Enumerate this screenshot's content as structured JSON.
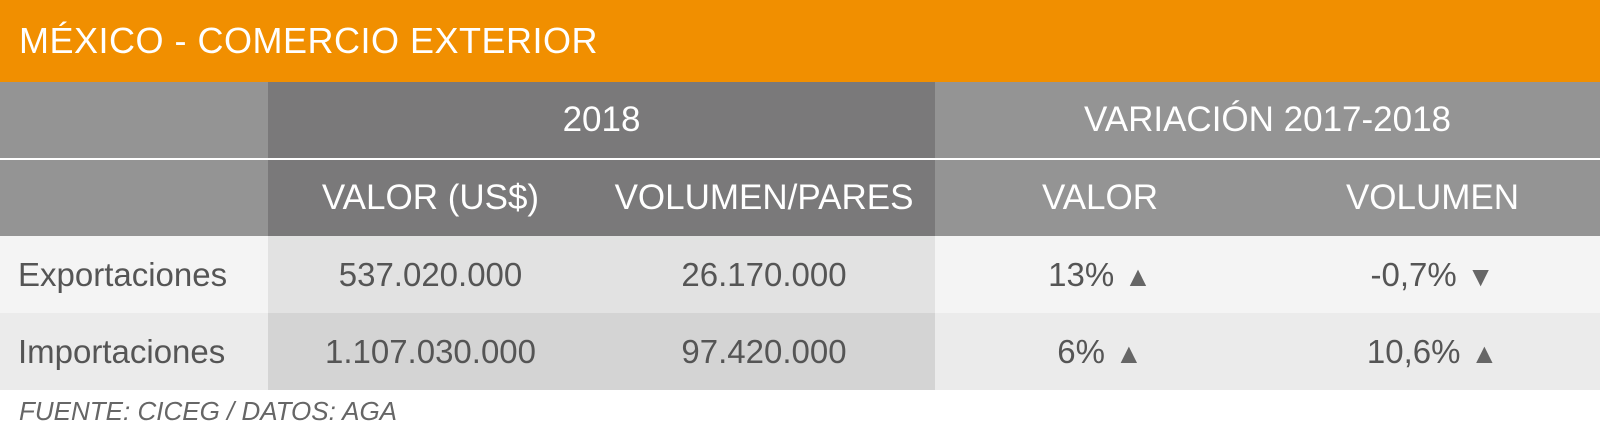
{
  "title": "MÉXICO - COMERCIO EXTERIOR",
  "header": {
    "group_empty": "",
    "group_2018": "2018",
    "group_variation": "VARIACIÓN 2017-2018",
    "col_valor_usd": "VALOR (US$)",
    "col_volumen_pares": "VOLUMEN/PARES",
    "col_var_valor": "VALOR",
    "col_var_volumen": "VOLUMEN"
  },
  "rows": [
    {
      "label": "Exportaciones",
      "valor": "537.020.000",
      "volumen": "26.170.000",
      "var_valor": "13%",
      "var_valor_dir": "up",
      "var_volumen": "-0,7%",
      "var_volumen_dir": "down"
    },
    {
      "label": "Importaciones",
      "valor": "1.107.030.000",
      "volumen": "97.420.000",
      "var_valor": "6%",
      "var_valor_dir": "up",
      "var_volumen": "10,6%",
      "var_volumen_dir": "up"
    }
  ],
  "source": "FUENTE: CICEG / DATOS: AGA",
  "colors": {
    "accent": "#f18f00",
    "header_light": "#949494",
    "header_dark": "#7a797a"
  },
  "chart_data": {
    "type": "table",
    "title": "MÉXICO - COMERCIO EXTERIOR",
    "columns": [
      "",
      "2018 VALOR (US$)",
      "2018 VOLUMEN/PARES",
      "VARIACIÓN 2017-2018 VALOR",
      "VARIACIÓN 2017-2018 VOLUMEN"
    ],
    "rows": [
      [
        "Exportaciones",
        537020000,
        26170000,
        13,
        -0.7
      ],
      [
        "Importaciones",
        1107030000,
        97420000,
        6,
        10.6
      ]
    ]
  }
}
